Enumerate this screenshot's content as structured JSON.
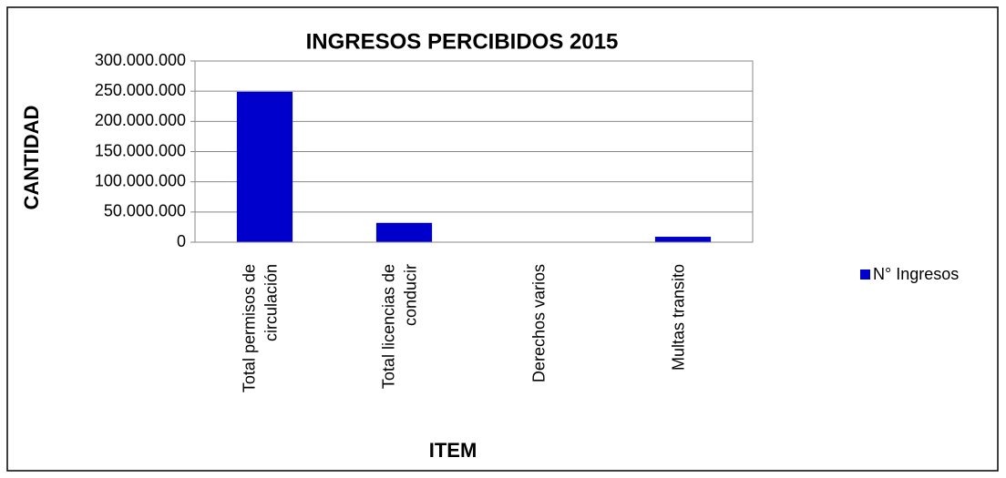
{
  "chart_data": {
    "type": "bar",
    "title": "INGRESOS PERCIBIDOS 2015",
    "x_label": "ITEM",
    "y_label": "CANTIDAD",
    "categories": [
      "Total permisos de circulación",
      "Total licencias de conducir",
      "Derechos varios",
      "Multas transito"
    ],
    "series": [
      {
        "name": "N° Ingresos",
        "color": "#0000cc",
        "values": [
          249000000,
          32000000,
          0,
          9000000
        ]
      }
    ],
    "ylim": [
      0,
      300000000
    ],
    "yticks": [
      0,
      {
        "value": 50000000,
        "label": "50.000.000"
      },
      {
        "value": 100000000,
        "label": "100.000.000"
      },
      {
        "value": 150000000,
        "label": "150.000.000"
      },
      {
        "value": 200000000,
        "label": "200.000.000"
      },
      {
        "value": 250000000,
        "label": "250.000.000"
      },
      {
        "value": 300000000,
        "label": "300.000.000"
      }
    ],
    "grid": true,
    "legend": "right"
  }
}
